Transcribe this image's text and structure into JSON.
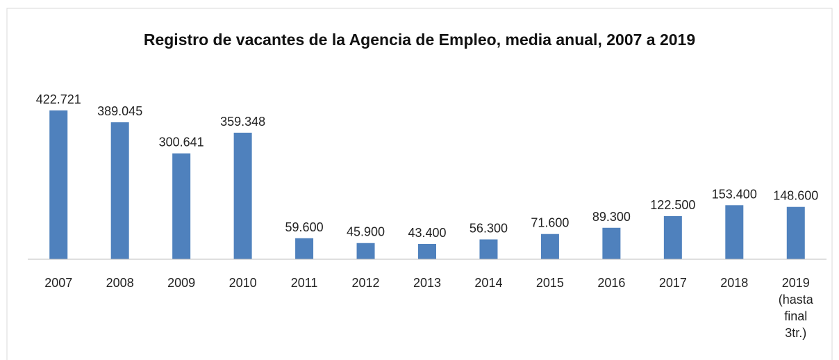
{
  "chart_data": {
    "type": "bar",
    "title": "Registro de vacantes de la Agencia de Empleo, media anual, 2007 a 2019",
    "categories": [
      "2007",
      "2008",
      "2009",
      "2010",
      "2011",
      "2012",
      "2013",
      "2014",
      "2015",
      "2016",
      "2017",
      "2018",
      "2019 (hasta final 3tr.)"
    ],
    "values": [
      422721,
      389045,
      300641,
      359348,
      59600,
      45900,
      43400,
      56300,
      71600,
      89300,
      122500,
      153400,
      148600
    ],
    "value_labels": [
      "422.721",
      "389.045",
      "300.641",
      "359.348",
      "59.600",
      "45.900",
      "43.400",
      "56.300",
      "71.600",
      "89.300",
      "122.500",
      "153.400",
      "148.600"
    ],
    "color": "#4f81bd",
    "ylim": [
      0,
      450000
    ]
  }
}
